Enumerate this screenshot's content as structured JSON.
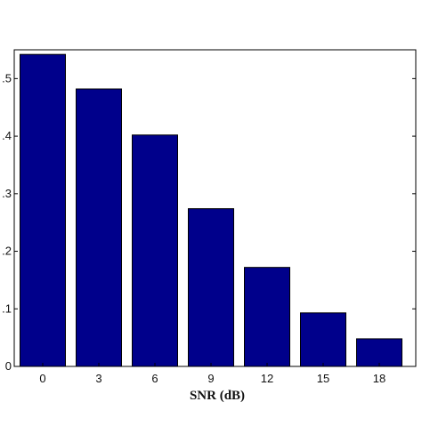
{
  "chart_data": {
    "type": "bar",
    "title": "",
    "xlabel": "SNR (dB)",
    "ylabel": "",
    "categories": [
      "0",
      "3",
      "6",
      "9",
      "12",
      "15",
      "18"
    ],
    "values": [
      0.542,
      0.482,
      0.402,
      0.274,
      0.172,
      0.093,
      0.048
    ],
    "ylim": [
      0,
      0.55
    ],
    "ytick_values": [
      0,
      0.1,
      0.2,
      0.3,
      0.4,
      0.5
    ],
    "ytick_labels": [
      "0",
      ".1",
      ".2",
      ".3",
      ".4",
      ".5"
    ],
    "bar_color": "#00008b",
    "grid": false,
    "legend": "none"
  }
}
